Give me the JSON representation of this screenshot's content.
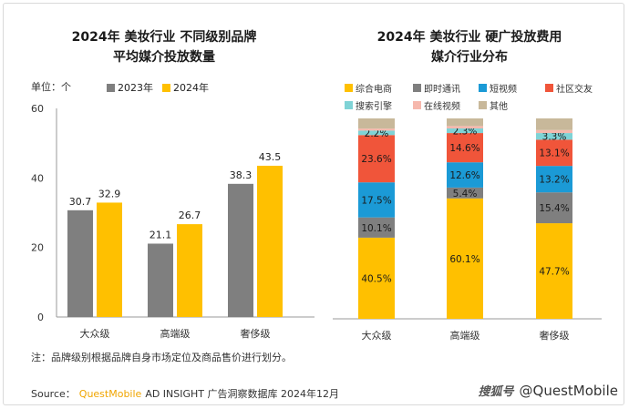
{
  "left": {
    "title_line1": "2024年 美妆行业 不同级别品牌",
    "title_line2": "平均媒介投放数量",
    "unit": "单位：个",
    "note": "注：品牌级别根据品牌自身市场定位及商品售价进行划分。"
  },
  "right": {
    "title_line1": "2024年 美妆行业 硬广投放费用",
    "title_line2": "媒介行业分布"
  },
  "source": {
    "label": "Source：",
    "brand": "QuestMobile",
    "text": "AD INSIGHT 广告洞察数据库 2024年12月"
  },
  "watermark": {
    "site": "搜狐号",
    "handle": "@QuestMobile"
  },
  "colors": {
    "y2023": "#7f7f7f",
    "y2024": "#ffc000",
    "ecommerce": "#ffc000",
    "messaging": "#7f7f7f",
    "short_video": "#1b9ad6",
    "social": "#f0553a",
    "search": "#7fd3d6",
    "online_video": "#f6b8ad",
    "other": "#c8b89a"
  },
  "chart_data": [
    {
      "type": "bar",
      "categories": [
        "大众级",
        "高端级",
        "奢侈级"
      ],
      "series": [
        {
          "name": "2023年",
          "values": [
            30.7,
            21.1,
            38.3
          ]
        },
        {
          "name": "2024年",
          "values": [
            32.9,
            26.7,
            43.5
          ]
        }
      ],
      "yticks": [
        "0",
        "20",
        "40",
        "60"
      ],
      "ylim": [
        0,
        60
      ],
      "legend_position": "top"
    },
    {
      "type": "bar",
      "stacked": true,
      "categories": [
        "大众级",
        "高端级",
        "奢侈级"
      ],
      "series": [
        {
          "name": "综合电商",
          "values": [
            40.5,
            60.1,
            47.7
          ],
          "labels": [
            "40.5%",
            "60.1%",
            "47.7%"
          ]
        },
        {
          "name": "即时通讯",
          "values": [
            10.1,
            5.4,
            15.4
          ],
          "labels": [
            "10.1%",
            "5.4%",
            "15.4%"
          ]
        },
        {
          "name": "短视频",
          "values": [
            17.5,
            12.6,
            13.2
          ],
          "labels": [
            "17.5%",
            "12.6%",
            "13.2%"
          ]
        },
        {
          "name": "社区交友",
          "values": [
            23.6,
            14.6,
            13.1
          ],
          "labels": [
            "23.6%",
            "14.6%",
            "13.1%"
          ]
        },
        {
          "name": "搜索引擎",
          "values": [
            2.2,
            2.3,
            3.3
          ],
          "labels": [
            "2.2%",
            "2.3%",
            "3.3%"
          ]
        },
        {
          "name": "在线视频",
          "values": [
            1.0,
            1.2,
            1.5
          ],
          "labels": [
            "",
            "",
            ""
          ]
        },
        {
          "name": "其他",
          "values": [
            5.1,
            3.8,
            5.8
          ],
          "labels": [
            "",
            "",
            ""
          ]
        }
      ],
      "ylim": [
        0,
        100
      ],
      "legend_position": "top"
    }
  ]
}
